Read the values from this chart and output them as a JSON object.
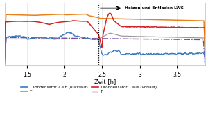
{
  "xlabel": "Zeit [h]",
  "xlim": [
    1.2,
    3.87
  ],
  "ylim": [
    20,
    62
  ],
  "xticks": [
    1.5,
    2.0,
    2.5,
    3.0,
    3.5
  ],
  "xticklabels": [
    "1,5",
    "2",
    "2,5",
    "3",
    "3,5"
  ],
  "yticks": [],
  "annotation_text": "Heizen und Entladen LWS",
  "vline_x": 2.45,
  "colors": {
    "blue": "#3a7abf",
    "red": "#d42020",
    "orange": "#e8811a",
    "gray": "#999999",
    "purple": "#7b3fa0"
  },
  "background_color": "#ffffff",
  "grid_color": "#d0d0d0"
}
